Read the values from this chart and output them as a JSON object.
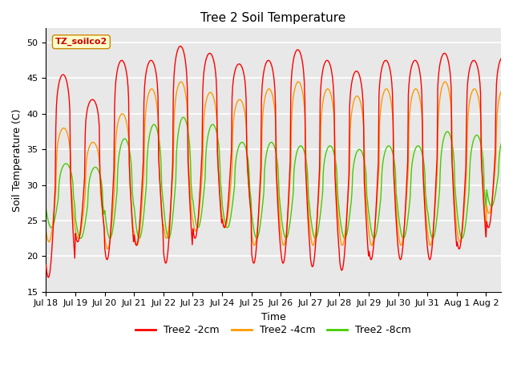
{
  "title": "Tree 2 Soil Temperature",
  "xlabel": "Time",
  "ylabel": "Soil Temperature (C)",
  "ylim": [
    15,
    52
  ],
  "yticks": [
    15,
    20,
    25,
    30,
    35,
    40,
    45,
    50
  ],
  "annotation_text": "TZ_soilco2",
  "annotation_bbox_face": "#ffffcc",
  "annotation_bbox_edge": "#cc8800",
  "line_colors": [
    "#ff0000",
    "#ff9900",
    "#44cc00"
  ],
  "line_labels": [
    "Tree2 -2cm",
    "Tree2 -4cm",
    "Tree2 -8cm"
  ],
  "line_width": 1.0,
  "background_color": "#ffffff",
  "plot_bg_color": "#e8e8e8",
  "grid_color": "#ffffff",
  "title_fontsize": 11,
  "axis_label_fontsize": 9,
  "tick_fontsize": 8,
  "legend_fontsize": 9,
  "days": [
    "Jul 18",
    "Jul 19",
    "Jul 20",
    "Jul 21",
    "Jul 22",
    "Jul 23",
    "Jul 24",
    "Jul 25",
    "Jul 26",
    "Jul 27",
    "Jul 28",
    "Jul 29",
    "Jul 30",
    "Jul 31",
    "Aug 1",
    "Aug 2"
  ],
  "num_points_per_day": 48
}
